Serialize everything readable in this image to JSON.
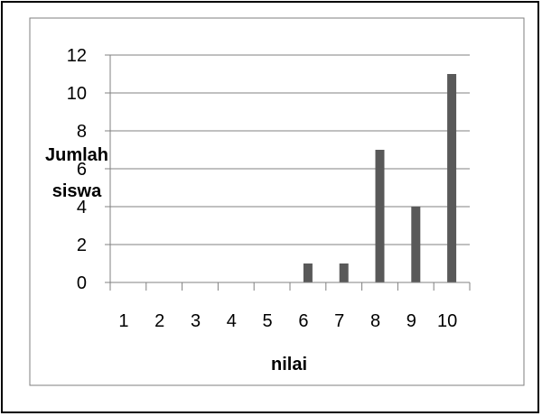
{
  "chart_data": {
    "type": "bar",
    "categories": [
      "1",
      "2",
      "3",
      "4",
      "5",
      "6",
      "7",
      "8",
      "9",
      "10"
    ],
    "values": [
      0,
      0,
      0,
      0,
      0,
      1,
      1,
      7,
      4,
      11
    ],
    "xlabel": "nilai",
    "ylabel_lines": [
      "Jumlah",
      "siswa"
    ],
    "ylim": [
      0,
      12
    ],
    "yticks": [
      0,
      2,
      4,
      6,
      8,
      10,
      12
    ],
    "grid": true,
    "legend": "none",
    "bar_color": "#595959",
    "grid_color": "#808080",
    "frame_color": "#7f7f7f"
  }
}
